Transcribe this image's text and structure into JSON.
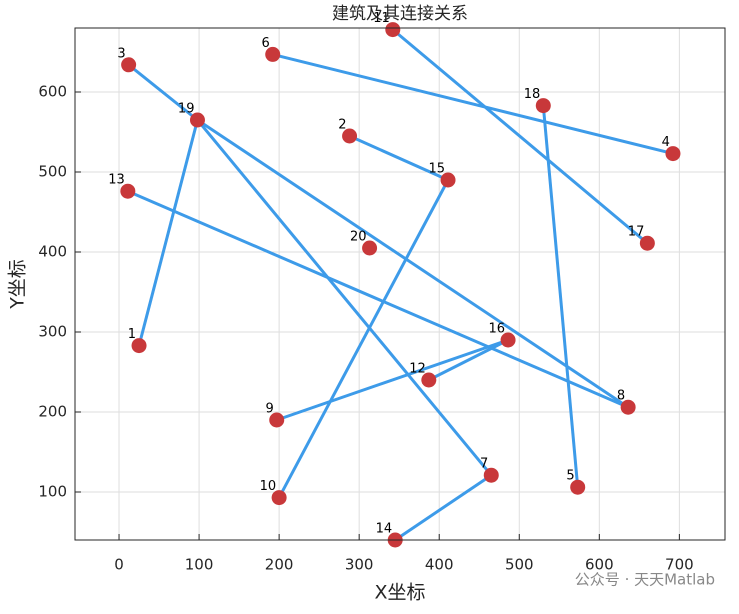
{
  "chart_data": {
    "type": "network",
    "title": "建筑及其连接关系",
    "x_label": "X坐标",
    "y_label": "Y坐标",
    "labels": [
      "1",
      "2",
      "3",
      "4",
      "5",
      "6",
      "7",
      "8",
      "9",
      "10",
      "11",
      "12",
      "13",
      "14",
      "15",
      "16",
      "17",
      "18",
      "19",
      "20"
    ],
    "x": [
      25,
      288,
      12,
      692,
      573,
      192,
      465,
      636,
      197,
      200,
      342,
      387,
      11,
      345,
      411,
      486,
      660,
      530,
      98,
      313
    ],
    "y": [
      283,
      545,
      634,
      523,
      106,
      647,
      121,
      206,
      190,
      93,
      678,
      240,
      476,
      40,
      490,
      290,
      411,
      583,
      565,
      405
    ],
    "links": [
      [
        "3",
        "19"
      ],
      [
        "19",
        "8"
      ],
      [
        "19",
        "1"
      ],
      [
        "19",
        "7"
      ],
      [
        "13",
        "8"
      ],
      [
        "6",
        "4"
      ],
      [
        "11",
        "17"
      ],
      [
        "18",
        "5"
      ],
      [
        "2",
        "15"
      ],
      [
        "15",
        "10"
      ],
      [
        "9",
        "16"
      ],
      [
        "16",
        "12"
      ],
      [
        "7",
        "14"
      ]
    ],
    "point_color": "#c8383a",
    "link_color": "#3d9be9",
    "xlim": [
      -55,
      757
    ],
    "ylim": [
      40,
      680
    ],
    "xticks": [
      0,
      100,
      200,
      300,
      400,
      500,
      600,
      700
    ],
    "yticks": [
      100,
      200,
      300,
      400,
      500,
      600
    ],
    "grid": true,
    "watermark": "公众号 · 天天Matlab"
  }
}
